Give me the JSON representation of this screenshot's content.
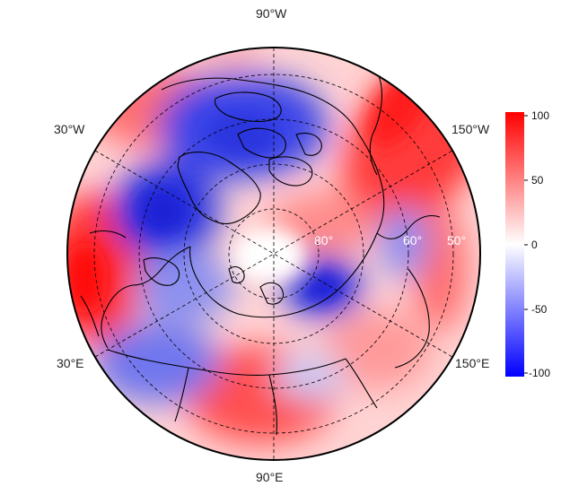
{
  "longitude_labels": {
    "top": "90°W",
    "bottom": "90°E",
    "upper_left": "30°W",
    "upper_right": "150°W",
    "lower_left": "30°E",
    "lower_right": "150°E"
  },
  "latitude_labels": [
    "80°",
    "60°",
    "50°"
  ],
  "colorbar": {
    "ticks": [
      "100",
      "50",
      "0",
      "-50",
      "-100"
    ],
    "range": [
      -100,
      100
    ],
    "colors": {
      "high": "#ff0000",
      "mid": "#ffffff",
      "low": "#0000ff"
    }
  },
  "map": {
    "projection": "north polar stereographic",
    "gridlines": "dashed"
  }
}
